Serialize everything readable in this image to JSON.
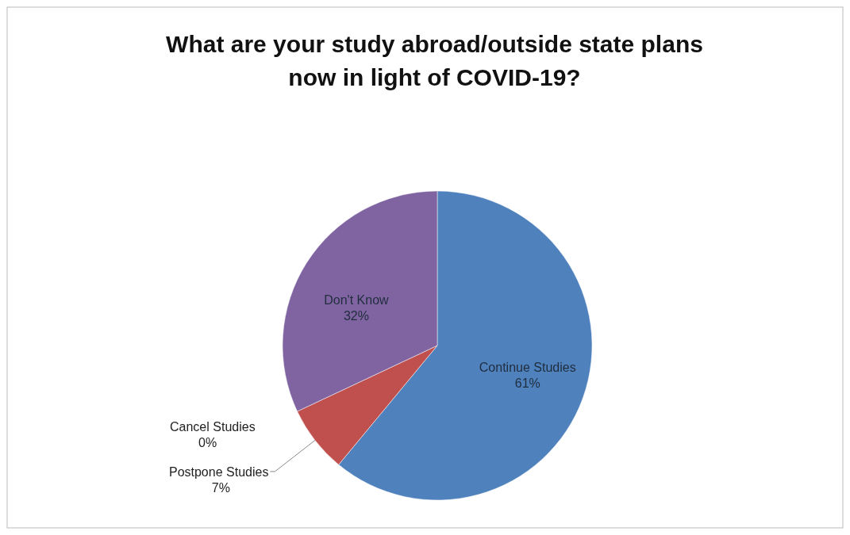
{
  "chart_data": {
    "type": "pie",
    "title": "What are your study abroad/outside state plans now in light of COVID-19?",
    "categories": [
      "Continue Studies",
      "Postpone Studies",
      "Cancel Studies",
      "Don't Know"
    ],
    "values": [
      61,
      7,
      0,
      32
    ],
    "colors": [
      "#4f81bd",
      "#c0504d",
      "#9bbb59",
      "#8064a2"
    ],
    "value_labels": [
      "61%",
      "7%",
      "0%",
      "32%"
    ]
  }
}
